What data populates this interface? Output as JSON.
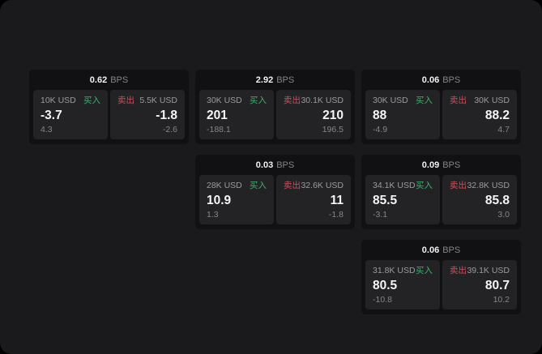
{
  "colors": {
    "surface": "#1a1a1c",
    "card_bg": "#111113",
    "panel_bg": "#232326",
    "accent_green": "#3faf6e",
    "accent_red": "#c9505c"
  },
  "labels": {
    "bps_suffix": "BPS",
    "buy": "买入",
    "sell": "卖出"
  },
  "cards": [
    {
      "bps": "0.62",
      "buy": {
        "amount": "10K USD",
        "value": "-3.7",
        "delta": "4.3"
      },
      "sell": {
        "amount": "5.5K USD",
        "value": "-1.8",
        "delta": "-2.6"
      }
    },
    {
      "bps": "2.92",
      "buy": {
        "amount": "30K USD",
        "value": "201",
        "delta": "-188.1"
      },
      "sell": {
        "amount": "30.1K USD",
        "value": "210",
        "delta": "196.5"
      }
    },
    {
      "bps": "0.06",
      "buy": {
        "amount": "30K USD",
        "value": "88",
        "delta": "-4.9"
      },
      "sell": {
        "amount": "30K USD",
        "value": "88.2",
        "delta": "4.7"
      }
    },
    {
      "bps": "0.03",
      "buy": {
        "amount": "28K USD",
        "value": "10.9",
        "delta": "1.3"
      },
      "sell": {
        "amount": "32.6K USD",
        "value": "11",
        "delta": "-1.8"
      }
    },
    {
      "bps": "0.09",
      "buy": {
        "amount": "34.1K USD",
        "value": "85.5",
        "delta": "-3.1"
      },
      "sell": {
        "amount": "32.8K USD",
        "value": "85.8",
        "delta": "3.0"
      }
    },
    {
      "bps": "0.06",
      "buy": {
        "amount": "31.8K USD",
        "value": "80.5",
        "delta": "-10.8"
      },
      "sell": {
        "amount": "39.1K USD",
        "value": "80.7",
        "delta": "10.2"
      }
    }
  ]
}
